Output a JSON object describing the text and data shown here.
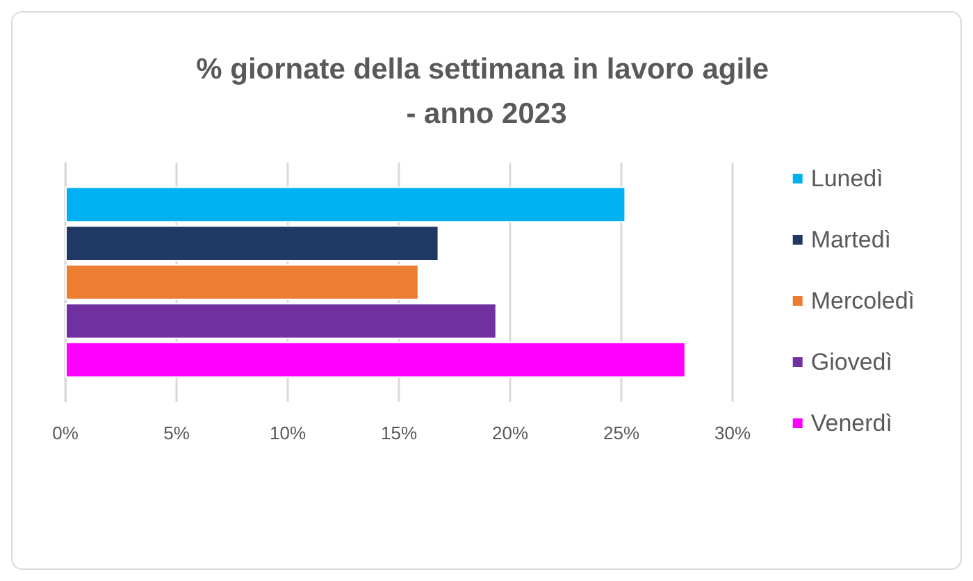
{
  "chart_data": {
    "type": "bar",
    "orientation": "horizontal",
    "title": "% giornate della settimana in lavoro agile - anno 2023",
    "categories": [
      null
    ],
    "series": [
      {
        "name": "Lunedì",
        "color": "#00b0f0",
        "values": [
          25.2
        ]
      },
      {
        "name": "Martedì",
        "color": "#203864",
        "values": [
          16.8
        ]
      },
      {
        "name": "Mercoledì",
        "color": "#ed7d31",
        "values": [
          15.9
        ]
      },
      {
        "name": "Giovedì",
        "color": "#7030a0",
        "values": [
          19.4
        ]
      },
      {
        "name": "Venerdì",
        "color": "#ff00ff",
        "values": [
          27.9
        ]
      }
    ],
    "xlim": [
      0,
      30
    ],
    "xticks": [
      {
        "value": 0,
        "label": "0%"
      },
      {
        "value": 5,
        "label": "5%"
      },
      {
        "value": 10,
        "label": "10%"
      },
      {
        "value": 15,
        "label": "15%"
      },
      {
        "value": 20,
        "label": "20%"
      },
      {
        "value": 25,
        "label": "25%"
      },
      {
        "value": 30,
        "label": "30%"
      }
    ],
    "grid": "x",
    "legend": "right"
  }
}
